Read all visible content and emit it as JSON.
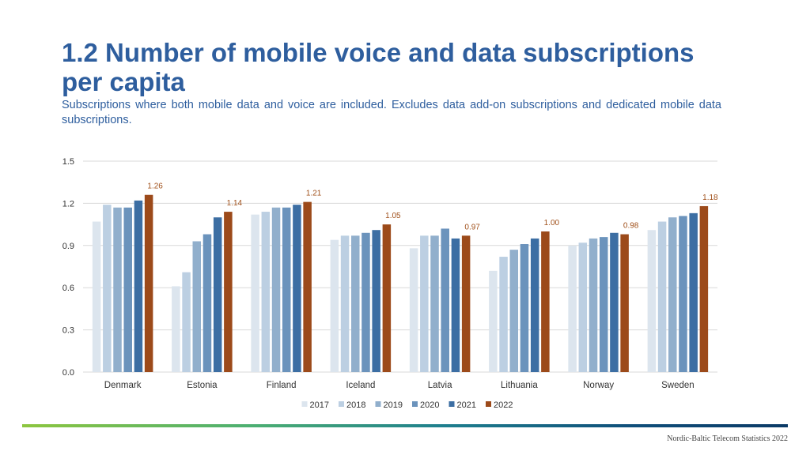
{
  "header": {
    "title": "1.2 Number of mobile voice and data subscriptions per capita",
    "subtitle": "Subscriptions where both mobile data and voice are included. Excludes data add-on subscriptions and dedicated mobile data subscriptions."
  },
  "footer": {
    "note": "Nordic-Baltic Telecom Statistics 2022"
  },
  "colors": {
    "title": "#2e5e9e",
    "grid": "#d9d9d9",
    "data_label": "#a0501a"
  },
  "chart_data": {
    "type": "bar",
    "title": "",
    "xlabel": "",
    "ylabel": "",
    "ylim": [
      0,
      1.5
    ],
    "yticks": [
      "0.0",
      "0.3",
      "0.6",
      "0.9",
      "1.2",
      "1.5"
    ],
    "ytick_values": [
      0,
      0.3,
      0.6,
      0.9,
      1.2,
      1.5
    ],
    "categories": [
      "Denmark",
      "Estonia",
      "Finland",
      "Iceland",
      "Latvia",
      "Lithuania",
      "Norway",
      "Sweden"
    ],
    "series": [
      {
        "name": "2017",
        "color": "#dce5ee",
        "values": [
          1.07,
          0.61,
          1.12,
          0.94,
          0.88,
          0.72,
          0.9,
          1.01
        ]
      },
      {
        "name": "2018",
        "color": "#bccfe2",
        "values": [
          1.19,
          0.71,
          1.14,
          0.97,
          0.97,
          0.82,
          0.92,
          1.07
        ]
      },
      {
        "name": "2019",
        "color": "#91afcc",
        "values": [
          1.17,
          0.93,
          1.17,
          0.97,
          0.97,
          0.87,
          0.95,
          1.1
        ]
      },
      {
        "name": "2020",
        "color": "#6b93bc",
        "values": [
          1.17,
          0.98,
          1.17,
          0.99,
          1.02,
          0.91,
          0.96,
          1.11
        ]
      },
      {
        "name": "2021",
        "color": "#3c6ea3",
        "values": [
          1.22,
          1.1,
          1.19,
          1.01,
          0.95,
          0.95,
          0.99,
          1.13
        ]
      },
      {
        "name": "2022",
        "color": "#9c4a1a",
        "values": [
          1.26,
          1.14,
          1.21,
          1.05,
          0.97,
          1.0,
          0.98,
          1.18
        ]
      }
    ],
    "data_labels": {
      "series": "2022",
      "values": [
        "1.26",
        "1.14",
        "1.21",
        "1.05",
        "0.97",
        "1.00",
        "0.98",
        "1.18"
      ]
    },
    "legend_position": "bottom",
    "grid": true
  }
}
